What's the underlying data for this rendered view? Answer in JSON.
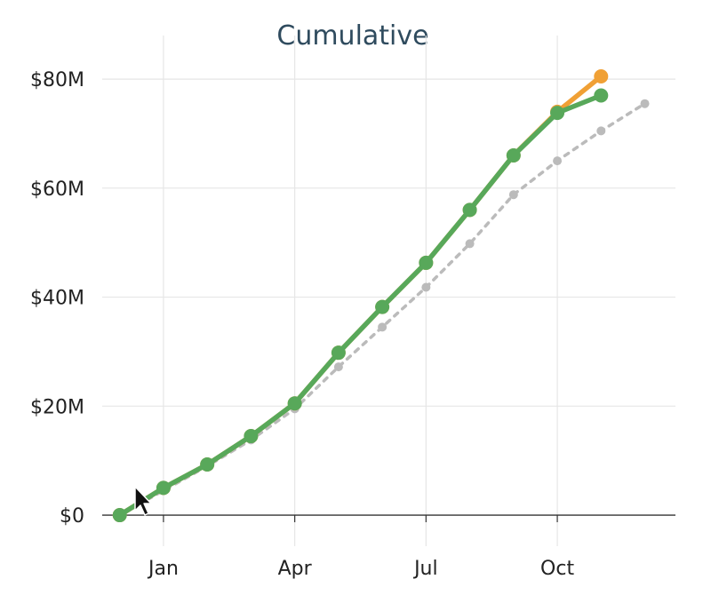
{
  "chart_data": {
    "type": "line",
    "title": "Cumulative",
    "xlabel": "",
    "ylabel": "",
    "x_tick_labels": [
      "Jan",
      "Apr",
      "Jul",
      "Oct"
    ],
    "y_tick_labels": [
      "$0",
      "$20M",
      "$40M",
      "$60M",
      "$80M"
    ],
    "y_ticks": [
      0,
      20,
      40,
      60,
      80
    ],
    "ylim": [
      -7,
      88
    ],
    "xlim": [
      -1.4,
      11.7
    ],
    "grid": true,
    "x_tick_positions": [
      0,
      3,
      6,
      9
    ],
    "series": [
      {
        "color": "#f0a035",
        "style": "solid",
        "x": [
          -1,
          0,
          1,
          2,
          3,
          4,
          5,
          6,
          7,
          8,
          9,
          10
        ],
        "values": [
          0,
          5.0,
          9.3,
          14.5,
          20.5,
          29.8,
          38.2,
          46.3,
          56.0,
          66.0,
          74.0,
          80.5
        ]
      },
      {
        "color": "#58a85a",
        "style": "solid",
        "x": [
          -1,
          0,
          1,
          2,
          3,
          4,
          5,
          6,
          7,
          8,
          9,
          10
        ],
        "values": [
          0,
          5.0,
          9.3,
          14.5,
          20.5,
          29.8,
          38.2,
          46.3,
          56.0,
          66.0,
          73.8,
          77.0
        ]
      },
      {
        "color": "#bbbbbb",
        "style": "dotted",
        "x": [
          -1,
          0,
          1,
          2,
          3,
          4,
          5,
          6,
          7,
          8,
          9,
          10,
          11
        ],
        "values": [
          0,
          4.5,
          9.0,
          13.8,
          19.5,
          27.2,
          34.5,
          41.8,
          49.8,
          58.8,
          65.0,
          70.5,
          75.5
        ]
      }
    ]
  }
}
